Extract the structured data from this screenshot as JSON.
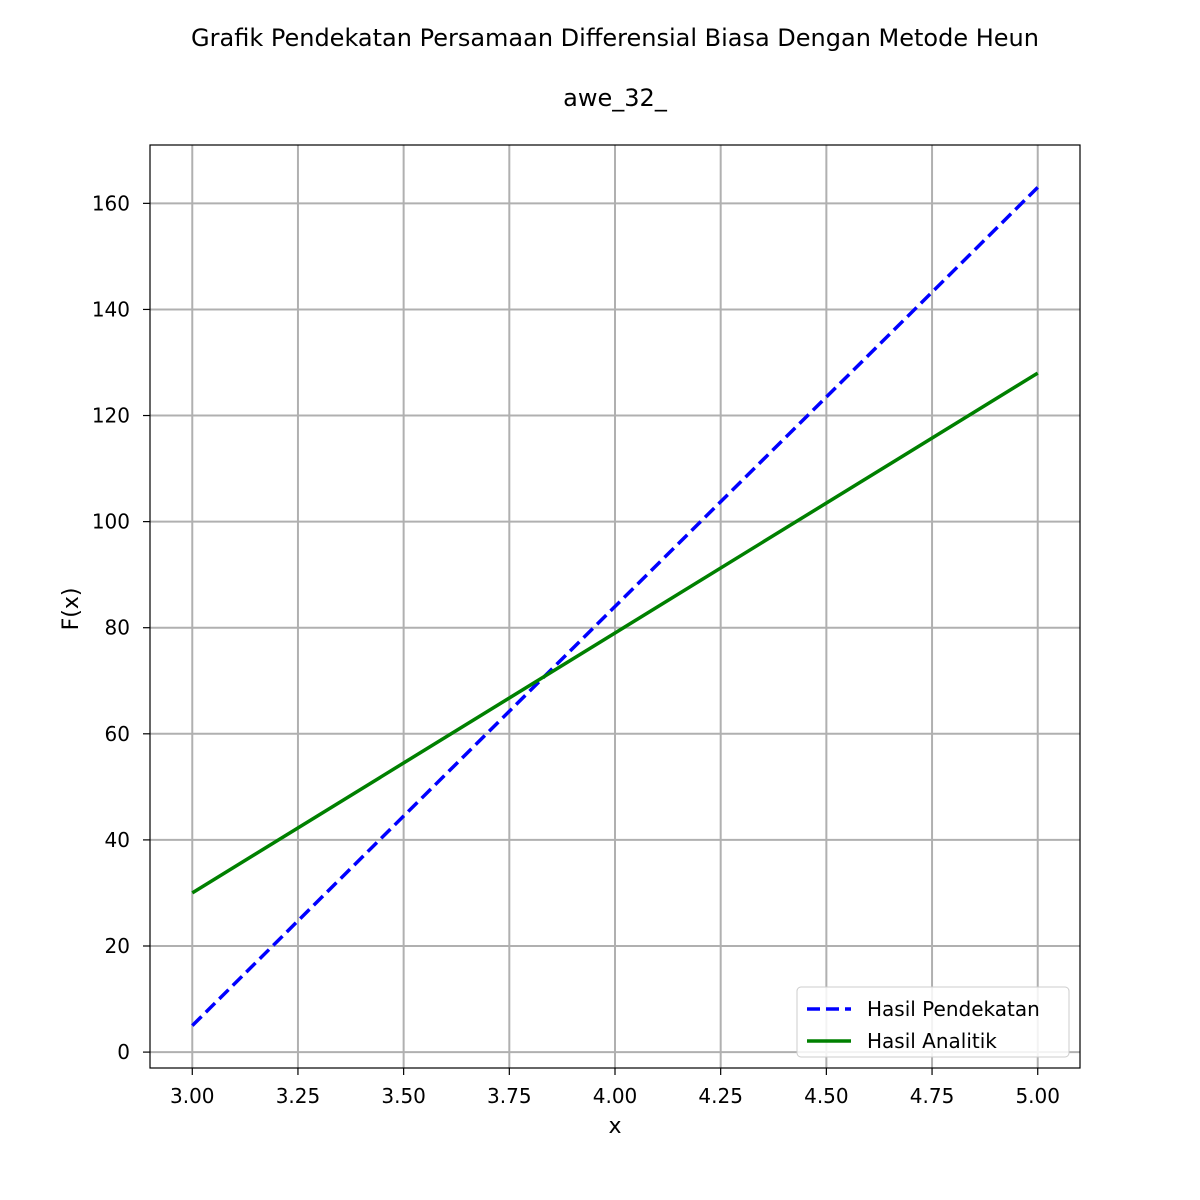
{
  "chart_data": {
    "type": "line",
    "title": "Grafik Pendekatan Persamaan Differensial Biasa Dengan Metode Heun",
    "subtitle": "awe_32_",
    "xlabel": "x",
    "ylabel": "F(x)",
    "xlim": [
      2.9,
      5.1
    ],
    "ylim": [
      -3,
      171
    ],
    "x_ticks": [
      "3.00",
      "3.25",
      "3.50",
      "3.75",
      "4.00",
      "4.25",
      "4.50",
      "4.75",
      "5.00"
    ],
    "y_ticks": [
      "0",
      "20",
      "40",
      "60",
      "80",
      "100",
      "120",
      "140",
      "160"
    ],
    "grid": true,
    "legend_position": "lower-right",
    "series": [
      {
        "name": "Hasil Pendekatan",
        "color": "#0000ff",
        "style": "dashed",
        "x": [
          3.0,
          5.0
        ],
        "y": [
          5,
          163
        ]
      },
      {
        "name": "Hasil Analitik",
        "color": "#008000",
        "style": "solid",
        "x": [
          3.0,
          5.0
        ],
        "y": [
          30,
          128
        ]
      }
    ]
  }
}
